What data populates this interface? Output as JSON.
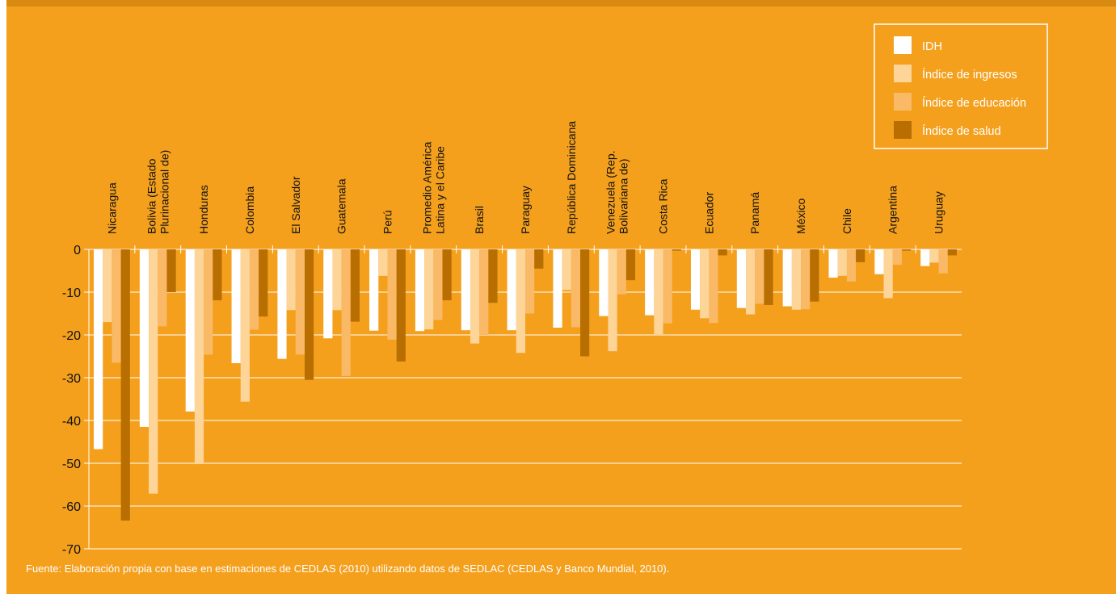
{
  "source_note": "Fuente: Elaboración propia con base en estimaciones de CEDLAS (2010) utilizando datos de SEDLAC (CEDLAS y Banco Mundial, 2010).",
  "colors": {
    "background": "#f4a01d",
    "grid": "#ffffff",
    "IDH": "#ffffff",
    "ingresos": "#fdd599",
    "educacion": "#f9b966",
    "salud": "#b86e00"
  },
  "chart_data": {
    "type": "bar",
    "orientation": "vertical",
    "ylim": [
      -70,
      0
    ],
    "yticks": [
      0,
      -10,
      -20,
      -30,
      -40,
      -50,
      -60,
      -70
    ],
    "grid": true,
    "legend_position": "top-right",
    "categories": [
      "Nicaragua",
      "Bolivia (Estado Plurinacional de)",
      "Honduras",
      "Colombia",
      "El Salvador",
      "Guatemala",
      "Perú",
      "Promedio América Latina y el Caribe",
      "Brasil",
      "Paraguay",
      "República Dominicana",
      "Venezuela (Rep. Bolivariana de)",
      "Costa Rica",
      "Ecuador",
      "Panamá",
      "México",
      "Chile",
      "Argentina",
      "Uruguay"
    ],
    "category_lines": [
      [
        "Nicaragua"
      ],
      [
        "Bolivia (Estado",
        "Plurinacional de)"
      ],
      [
        "Honduras"
      ],
      [
        "Colombia"
      ],
      [
        "El Salvador"
      ],
      [
        "Guatemala"
      ],
      [
        "Perú"
      ],
      [
        "Promedio América",
        "Latina y el Caribe"
      ],
      [
        "Brasil"
      ],
      [
        "Paraguay"
      ],
      [
        "República Dominicana"
      ],
      [
        "Venezuela (Rep.",
        "Bolivariana de)"
      ],
      [
        "Costa Rica"
      ],
      [
        "Ecuador"
      ],
      [
        "Panamá"
      ],
      [
        "México"
      ],
      [
        "Chile"
      ],
      [
        "Argentina"
      ],
      [
        "Uruguay"
      ]
    ],
    "series": [
      {
        "name": "IDH",
        "color_key": "IDH",
        "values": [
          -46.7,
          -41.5,
          -37.9,
          -26.6,
          -25.6,
          -20.8,
          -19.0,
          -19.1,
          -18.9,
          -18.9,
          -18.3,
          -15.6,
          -15.4,
          -14.1,
          -13.7,
          -13.3,
          -6.6,
          -5.8,
          -3.9
        ]
      },
      {
        "name": "Índice de ingresos",
        "color_key": "ingresos",
        "values": [
          -17.0,
          -57.1,
          -50.2,
          -35.6,
          -14.2,
          -14.2,
          -6.2,
          -18.7,
          -22.0,
          -24.2,
          -9.5,
          -23.8,
          -19.8,
          -16.1,
          -15.2,
          -14.1,
          -6.2,
          -11.4,
          -3.1
        ]
      },
      {
        "name": "Índice de educación",
        "color_key": "educacion",
        "values": [
          -26.5,
          -18.0,
          -24.6,
          -18.8,
          -24.6,
          -29.6,
          -21.1,
          -16.5,
          -20.0,
          -15.0,
          -18.2,
          -10.5,
          -17.3,
          -17.2,
          -12.7,
          -14.0,
          -7.5,
          -3.6,
          -5.6
        ]
      },
      {
        "name": "Índice de salud",
        "color_key": "salud",
        "values": [
          -63.4,
          -10.0,
          -11.9,
          -15.7,
          -30.5,
          -16.9,
          -26.2,
          -11.9,
          -12.5,
          -4.5,
          -25.0,
          -7.2,
          -0.3,
          -1.4,
          -13.0,
          -12.2,
          -3.0,
          -0.3,
          -1.4
        ]
      }
    ]
  }
}
